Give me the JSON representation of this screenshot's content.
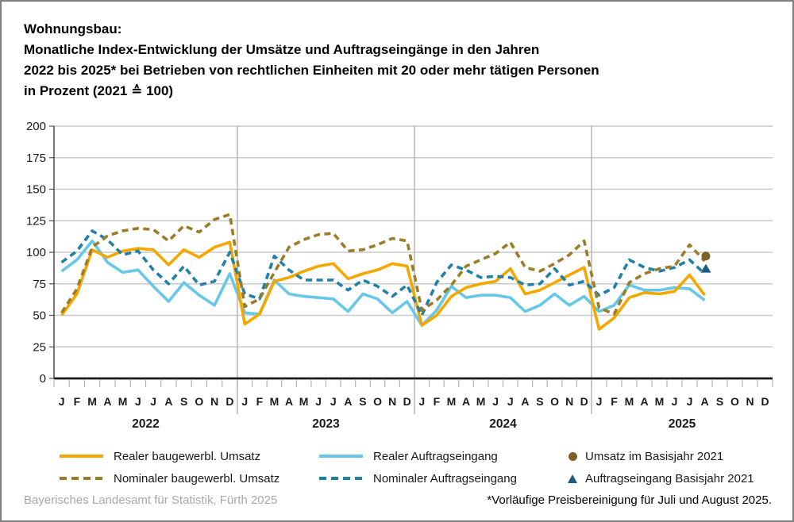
{
  "title": {
    "lines": [
      "Wohnungsbau:",
      "Monatliche Index-Entwicklung der Umsätze und Auftragseingänge in den Jahren",
      "2022 bis 2025* bei Betrieben von rechtlichen Einheiten mit 20 oder mehr tätigen Personen",
      "in Prozent (2021 ≙ 100)"
    ]
  },
  "chart_data": {
    "type": "line",
    "title": "Wohnungsbau: Monatliche Index-Entwicklung der Umsätze und Auftragseingänge 2022 bis 2025, in Prozent (2021 ≙ 100)",
    "ylim": [
      0,
      200
    ],
    "yticks": [
      0,
      25,
      50,
      75,
      100,
      125,
      150,
      175,
      200
    ],
    "grid": true,
    "years": [
      "2022",
      "2023",
      "2024",
      "2025"
    ],
    "month_letters": [
      "J",
      "F",
      "M",
      "A",
      "M",
      "J",
      "J",
      "A",
      "S",
      "O",
      "N",
      "D"
    ],
    "x_range": "Januar 2022 bis August 2025",
    "series": [
      {
        "name": "Realer Auftragseingang",
        "color": "#66C7E9",
        "dash": false,
        "values": [
          85,
          94,
          109,
          92,
          84,
          86,
          73,
          61,
          76,
          66,
          58,
          83,
          52,
          51,
          78,
          67,
          65,
          64,
          63,
          53,
          67,
          63,
          52,
          61,
          42,
          54,
          73,
          64,
          66,
          66,
          64,
          53,
          58,
          67,
          58,
          65,
          53,
          58,
          74,
          70,
          70,
          72,
          71,
          62,
          null,
          null,
          null,
          null
        ]
      },
      {
        "name": "Realer baugewerbl. Umsatz",
        "color": "#F5A700",
        "dash": false,
        "values": [
          50,
          67,
          102,
          96,
          101,
          103,
          102,
          90,
          102,
          96,
          104,
          108,
          43,
          51,
          77,
          80,
          85,
          89,
          91,
          79,
          83,
          86,
          91,
          89,
          42,
          50,
          65,
          72,
          75,
          77,
          87,
          67,
          70,
          76,
          82,
          88,
          39,
          48,
          64,
          68,
          67,
          69,
          82,
          66,
          null,
          null,
          null,
          null
        ]
      },
      {
        "name": "Nominaler Auftragseingang",
        "color": "#1F80A8",
        "dash": true,
        "values": [
          92,
          101,
          117,
          110,
          98,
          101,
          86,
          75,
          89,
          74,
          77,
          100,
          67,
          63,
          97,
          86,
          78,
          78,
          78,
          70,
          78,
          73,
          65,
          74,
          50,
          76,
          90,
          86,
          80,
          81,
          80,
          74,
          75,
          87,
          74,
          77,
          66,
          72,
          94,
          88,
          85,
          88,
          94,
          83,
          null,
          null,
          null,
          null
        ]
      },
      {
        "name": "Nominaler baugewerbl. Umsatz",
        "color": "#9C7C26",
        "dash": true,
        "values": [
          52,
          71,
          104,
          113,
          117,
          119,
          118,
          109,
          121,
          116,
          126,
          130,
          57,
          63,
          84,
          104,
          110,
          114,
          115,
          101,
          102,
          106,
          111,
          109,
          54,
          62,
          74,
          89,
          94,
          99,
          108,
          88,
          85,
          91,
          98,
          109,
          56,
          51,
          76,
          83,
          87,
          89,
          106,
          93,
          null,
          null,
          null,
          null
        ]
      }
    ],
    "point_markers": [
      {
        "name": "Umsatz im Basisjahr 2021",
        "shape": "circle",
        "color": "#7B6328",
        "month_index": 43,
        "value": 97
      },
      {
        "name": "Auftragseingang Basisjahr 2021",
        "shape": "triangle",
        "color": "#1C5C7E",
        "month_index": 43,
        "value": 87
      }
    ],
    "legend_position": "bottom"
  },
  "legend": {
    "items": [
      {
        "label": "Realer baugewerbl. Umsatz",
        "swatch": "solid-line",
        "color": "#F5A700"
      },
      {
        "label": "Nominaler baugewerbl. Umsatz",
        "swatch": "dashed-line",
        "color": "#9C7C26"
      },
      {
        "label": "Realer Auftragseingang",
        "swatch": "solid-line",
        "color": "#66C7E9"
      },
      {
        "label": "Nominaler Auftragseingang",
        "swatch": "dashed-line",
        "color": "#1F80A8"
      },
      {
        "label": "Umsatz im Basisjahr 2021",
        "swatch": "circle",
        "color": "#7B6328"
      },
      {
        "label": "Auftragseingang Basisjahr 2021",
        "swatch": "triangle",
        "color": "#1C5C7E"
      }
    ]
  },
  "footer": {
    "source": "Bayerisches Landesamt für Statistik, Fürth 2025",
    "note": "*Vorläufige Preisbereinigung für Juli und August 2025."
  }
}
